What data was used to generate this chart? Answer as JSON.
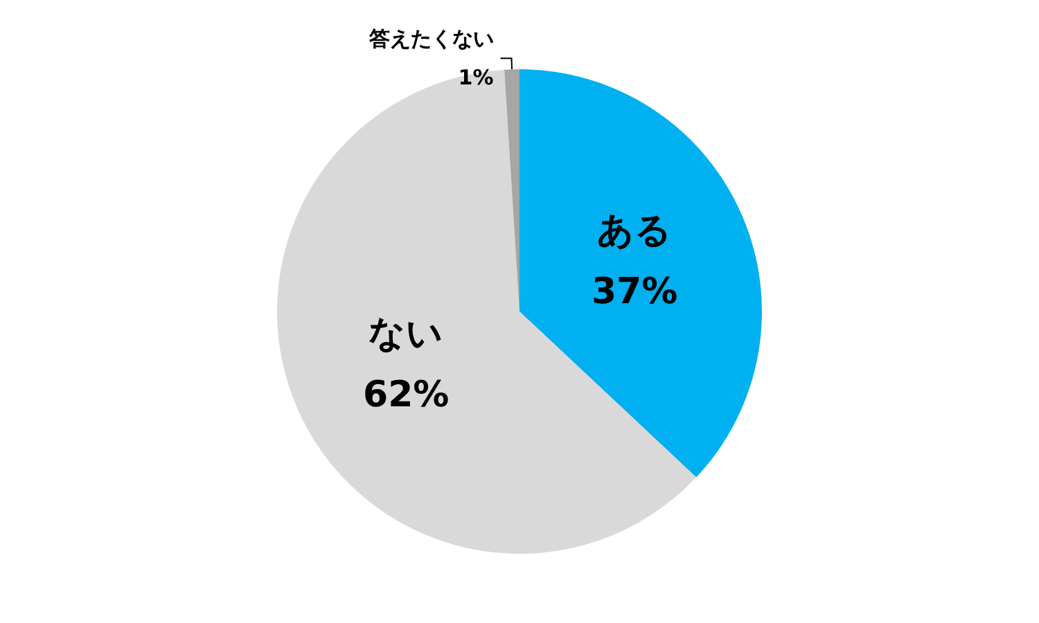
{
  "chart_data": {
    "type": "pie",
    "categories": [
      "ある",
      "ない",
      "答えたくない"
    ],
    "values": [
      37,
      62,
      1
    ],
    "colors": [
      "#00b0f0",
      "#d9d9d9",
      "#a6a6a6"
    ],
    "value_labels": [
      "37%",
      "62%",
      "1%"
    ],
    "legend": false
  }
}
